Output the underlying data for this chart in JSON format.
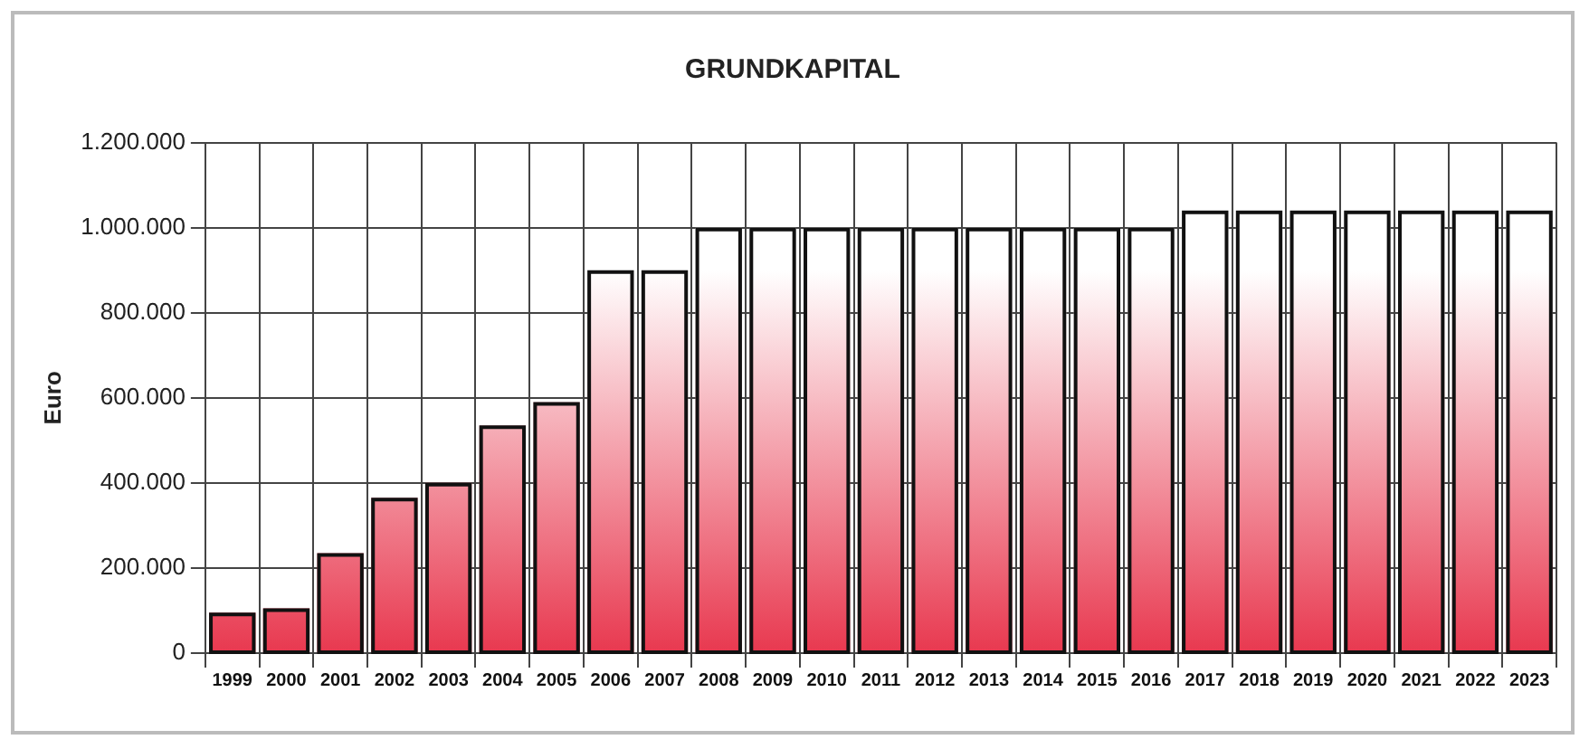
{
  "chart_data": {
    "type": "bar",
    "title": "GRUNDKAPITAL",
    "ylabel": "Euro",
    "categories": [
      "1999",
      "2000",
      "2001",
      "2002",
      "2003",
      "2004",
      "2005",
      "2006",
      "2007",
      "2008",
      "2009",
      "2010",
      "2011",
      "2012",
      "2013",
      "2014",
      "2015",
      "2016",
      "2017",
      "2018",
      "2019",
      "2020",
      "2021",
      "2022",
      "2023"
    ],
    "values": [
      95000,
      105000,
      235000,
      365000,
      400000,
      535000,
      590000,
      900000,
      900000,
      1000000,
      1000000,
      1000000,
      1000000,
      1000000,
      1000000,
      1000000,
      1000000,
      1000000,
      1040000,
      1040000,
      1040000,
      1040000,
      1040000,
      1040000,
      1040000
    ],
    "color": "#e8384f",
    "ylim": [
      0,
      1200000
    ],
    "yticks": [
      0,
      {
        "value": 200000,
        "label": "200.000"
      },
      {
        "value": 400000,
        "label": "400.000"
      },
      {
        "value": 600000,
        "label": "600.000"
      },
      {
        "value": 800000,
        "label": "800.000"
      },
      {
        "value": 1000000,
        "label": "1.000.000"
      },
      {
        "value": 1200000,
        "label": "1.200.000"
      }
    ],
    "grid": true
  }
}
